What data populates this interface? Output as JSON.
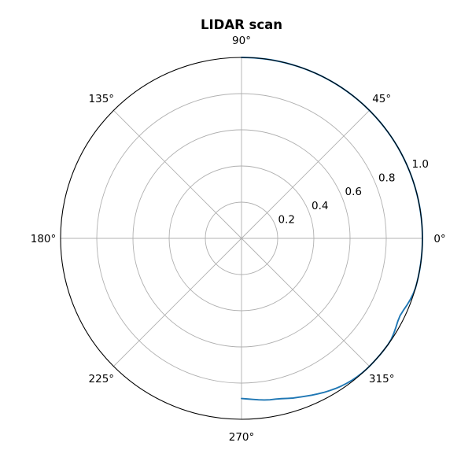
{
  "chart_data": {
    "type": "line",
    "projection": "polar",
    "title": "LIDAR scan",
    "theta_tick_labels": [
      "0°",
      "45°",
      "90°",
      "135°",
      "180°",
      "225°",
      "270°",
      "315°"
    ],
    "theta_ticks_deg": [
      0,
      45,
      90,
      135,
      180,
      225,
      270,
      315
    ],
    "r_tick_labels": [
      "0.2",
      "0.4",
      "0.6",
      "0.8",
      "1.0"
    ],
    "r_ticks": [
      0.2,
      0.4,
      0.6,
      0.8,
      1.0
    ],
    "r_tick_label_angle_deg": 22.5,
    "rlim": [
      0,
      1.0
    ],
    "grid": true,
    "colors": {
      "series": "#1f77b4",
      "grid": "#b0b0b0",
      "frame": "#000000"
    },
    "series": [
      {
        "theta_deg": [
          270,
          272,
          274,
          276,
          278,
          280,
          282,
          284,
          286,
          288,
          290,
          292,
          294,
          296,
          298,
          300,
          302,
          304,
          306,
          308,
          310,
          312,
          314,
          316,
          318,
          320,
          322,
          324,
          326,
          328,
          330,
          332,
          334,
          336,
          338,
          340,
          342,
          344,
          346,
          348,
          350,
          352,
          354,
          356,
          358,
          360,
          2,
          4,
          6,
          8,
          10,
          12,
          14,
          16,
          18,
          20,
          22,
          24,
          26,
          28,
          30,
          32,
          34,
          36,
          38,
          40,
          42,
          44,
          46,
          48,
          50,
          52,
          54,
          56,
          58,
          60,
          62,
          64,
          66,
          68,
          70,
          72,
          74,
          76,
          78,
          80,
          82,
          84,
          86,
          88,
          90
        ],
        "r": [
          0.885,
          0.888,
          0.892,
          0.897,
          0.902,
          0.906,
          0.908,
          0.913,
          0.92,
          0.928,
          0.934,
          0.941,
          0.949,
          0.957,
          0.965,
          0.972,
          0.979,
          0.985,
          0.99,
          0.994,
          0.997,
          0.999,
          1.0,
          1.0,
          1.0,
          1.0,
          1.0,
          1.0,
          0.998,
          0.992,
          0.985,
          0.978,
          0.975,
          0.979,
          0.986,
          0.992,
          0.997,
          1.0,
          1.0,
          1.0,
          1.0,
          1.0,
          1.0,
          1.0,
          1.0,
          1.0,
          1.0,
          1.0,
          1.0,
          1.0,
          1.0,
          1.0,
          1.0,
          1.0,
          1.0,
          1.0,
          1.0,
          1.0,
          1.0,
          1.0,
          1.0,
          1.0,
          1.0,
          1.0,
          1.0,
          1.0,
          1.0,
          1.0,
          1.0,
          1.0,
          1.0,
          1.0,
          1.0,
          1.0,
          1.0,
          1.0,
          1.0,
          1.0,
          1.0,
          1.0,
          1.0,
          1.0,
          1.0,
          1.0,
          1.0,
          1.0,
          1.0,
          1.0,
          1.0,
          1.0,
          1.0
        ]
      }
    ]
  }
}
